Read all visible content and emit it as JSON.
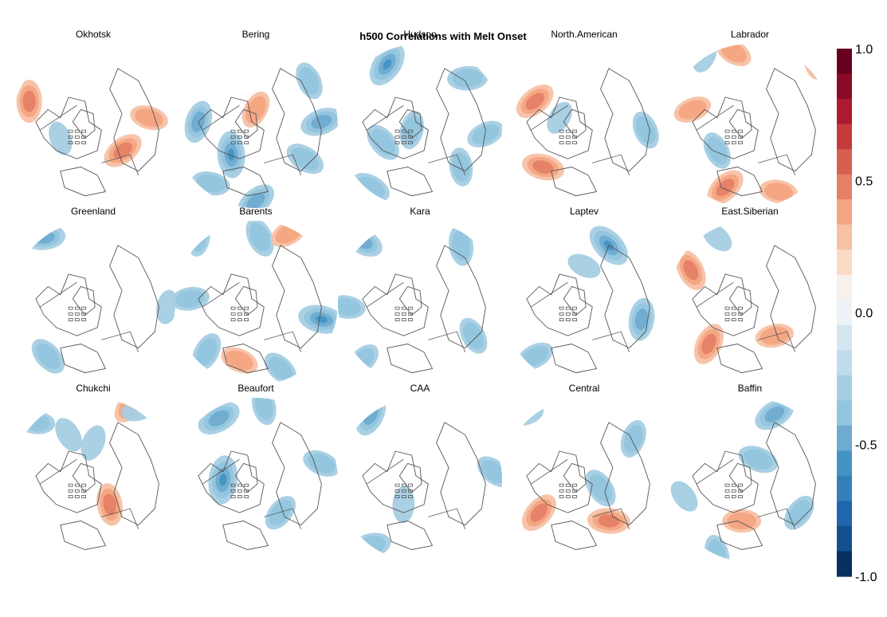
{
  "chart_data": {
    "type": "heatmap",
    "title": "h500 Correlations with Melt Onset",
    "panels": [
      {
        "name": "Okhotsk",
        "blobs": [
          {
            "x": -0.78,
            "y": -0.3,
            "v": 0.5
          },
          {
            "x": 0.36,
            "y": 0.3,
            "v": 0.5
          },
          {
            "x": 0.68,
            "y": -0.1,
            "v": 0.4
          },
          {
            "x": -0.4,
            "y": 0.15,
            "v": -0.3
          }
        ]
      },
      {
        "name": "Bering",
        "blobs": [
          {
            "x": -0.7,
            "y": -0.05,
            "v": -0.5
          },
          {
            "x": 0.8,
            "y": -0.05,
            "v": -0.5
          },
          {
            "x": 0.6,
            "y": 0.4,
            "v": -0.45
          },
          {
            "x": -0.3,
            "y": 0.35,
            "v": -0.6
          },
          {
            "x": 0.0,
            "y": 0.92,
            "v": -0.5
          },
          {
            "x": -0.55,
            "y": 0.7,
            "v": -0.4
          },
          {
            "x": 0.65,
            "y": -0.55,
            "v": -0.4
          },
          {
            "x": 0.0,
            "y": -0.2,
            "v": 0.4
          }
        ]
      },
      {
        "name": "Hudson",
        "blobs": [
          {
            "x": -0.4,
            "y": -0.75,
            "v": -0.6
          },
          {
            "x": 0.58,
            "y": -0.58,
            "v": -0.45
          },
          {
            "x": -0.45,
            "y": 0.2,
            "v": -0.45
          },
          {
            "x": -0.1,
            "y": 0.05,
            "v": -0.4
          },
          {
            "x": 0.8,
            "y": 0.1,
            "v": -0.4
          },
          {
            "x": -0.6,
            "y": 0.75,
            "v": -0.45
          },
          {
            "x": 0.5,
            "y": 0.5,
            "v": -0.4
          }
        ]
      },
      {
        "name": "North.American",
        "blobs": [
          {
            "x": -0.6,
            "y": -0.3,
            "v": 0.5
          },
          {
            "x": -0.5,
            "y": 0.5,
            "v": 0.5
          },
          {
            "x": 0.75,
            "y": 0.05,
            "v": -0.4
          },
          {
            "x": -0.3,
            "y": -0.1,
            "v": -0.3
          }
        ]
      },
      {
        "name": "Labrador",
        "blobs": [
          {
            "x": -0.7,
            "y": -0.2,
            "v": 0.4
          },
          {
            "x": -0.2,
            "y": -0.9,
            "v": 0.4
          },
          {
            "x": 0.8,
            "y": -0.8,
            "v": 0.4
          },
          {
            "x": -0.3,
            "y": 0.75,
            "v": 0.5
          },
          {
            "x": 0.35,
            "y": 0.8,
            "v": 0.4
          },
          {
            "x": -0.4,
            "y": 0.3,
            "v": -0.4
          },
          {
            "x": -0.55,
            "y": -0.85,
            "v": -0.3
          }
        ]
      },
      {
        "name": "Greenland",
        "blobs": [
          {
            "x": -0.6,
            "y": -0.8,
            "v": -0.5
          },
          {
            "x": -0.55,
            "y": 0.65,
            "v": -0.45
          },
          {
            "x": 0.9,
            "y": 0.05,
            "v": -0.3
          }
        ]
      },
      {
        "name": "Barents",
        "blobs": [
          {
            "x": 0.8,
            "y": 0.2,
            "v": -0.6
          },
          {
            "x": 0.05,
            "y": -0.8,
            "v": -0.45
          },
          {
            "x": -0.6,
            "y": 0.6,
            "v": -0.45
          },
          {
            "x": -0.8,
            "y": -0.05,
            "v": -0.4
          },
          {
            "x": 0.3,
            "y": 0.8,
            "v": -0.4
          },
          {
            "x": -0.7,
            "y": -0.8,
            "v": -0.4
          },
          {
            "x": 0.4,
            "y": -0.85,
            "v": 0.4
          },
          {
            "x": -0.2,
            "y": 0.7,
            "v": 0.4
          }
        ]
      },
      {
        "name": "Kara",
        "blobs": [
          {
            "x": -0.7,
            "y": -0.75,
            "v": -0.5
          },
          {
            "x": 0.5,
            "y": -0.7,
            "v": -0.45
          },
          {
            "x": -0.7,
            "y": 0.7,
            "v": -0.4
          },
          {
            "x": -0.9,
            "y": 0.05,
            "v": -0.4
          },
          {
            "x": 0.65,
            "y": 0.4,
            "v": -0.4
          }
        ]
      },
      {
        "name": "Laptev",
        "blobs": [
          {
            "x": 0.3,
            "y": -0.7,
            "v": -0.6
          },
          {
            "x": 0.7,
            "y": 0.2,
            "v": -0.5
          },
          {
            "x": -0.6,
            "y": 0.65,
            "v": -0.4
          },
          {
            "x": 0.0,
            "y": -0.45,
            "v": -0.3
          }
        ]
      },
      {
        "name": "East.Siberian",
        "blobs": [
          {
            "x": -0.72,
            "y": -0.4,
            "v": 0.5
          },
          {
            "x": -0.5,
            "y": 0.5,
            "v": 0.5
          },
          {
            "x": 0.3,
            "y": 0.4,
            "v": 0.4
          },
          {
            "x": -0.4,
            "y": -0.8,
            "v": -0.3
          }
        ]
      },
      {
        "name": "Chukchi",
        "blobs": [
          {
            "x": 0.2,
            "y": 0.3,
            "v": 0.5
          },
          {
            "x": 0.45,
            "y": -0.9,
            "v": 0.4
          },
          {
            "x": -0.7,
            "y": -0.7,
            "v": -0.4
          },
          {
            "x": -0.3,
            "y": -0.55,
            "v": -0.35
          },
          {
            "x": 0.0,
            "y": -0.45,
            "v": -0.35
          },
          {
            "x": 0.55,
            "y": -0.85,
            "v": -0.3
          }
        ]
      },
      {
        "name": "Beaufort",
        "blobs": [
          {
            "x": -0.4,
            "y": 0.0,
            "v": -0.65
          },
          {
            "x": -0.45,
            "y": -0.75,
            "v": -0.55
          },
          {
            "x": 0.8,
            "y": -0.2,
            "v": -0.4
          },
          {
            "x": 0.1,
            "y": -0.9,
            "v": -0.4
          },
          {
            "x": 0.3,
            "y": 0.4,
            "v": -0.4
          }
        ]
      },
      {
        "name": "CAA",
        "blobs": [
          {
            "x": -0.6,
            "y": -0.8,
            "v": -0.55
          },
          {
            "x": -0.6,
            "y": 0.8,
            "v": -0.45
          },
          {
            "x": 0.9,
            "y": -0.1,
            "v": -0.4
          },
          {
            "x": -0.2,
            "y": 0.3,
            "v": -0.35
          }
        ]
      },
      {
        "name": "Central",
        "blobs": [
          {
            "x": -0.55,
            "y": 0.4,
            "v": 0.5
          },
          {
            "x": 0.3,
            "y": 0.5,
            "v": 0.5
          },
          {
            "x": 0.2,
            "y": 0.1,
            "v": -0.45
          },
          {
            "x": 0.6,
            "y": -0.5,
            "v": -0.4
          },
          {
            "x": -0.7,
            "y": -0.8,
            "v": -0.3
          }
        ]
      },
      {
        "name": "Baffin",
        "blobs": [
          {
            "x": 0.3,
            "y": -0.8,
            "v": -0.5
          },
          {
            "x": 0.1,
            "y": -0.25,
            "v": -0.45
          },
          {
            "x": -0.4,
            "y": 0.9,
            "v": -0.4
          },
          {
            "x": 0.6,
            "y": 0.4,
            "v": -0.4
          },
          {
            "x": -0.1,
            "y": 0.5,
            "v": 0.4
          },
          {
            "x": -0.8,
            "y": 0.2,
            "v": -0.3
          }
        ]
      }
    ],
    "colorbar": {
      "ticks": [
        1.0,
        0.5,
        0.0,
        -0.5,
        -1.0
      ],
      "tick_labels": [
        "1.0",
        "0.5",
        "0.0",
        "-0.5",
        "-1.0"
      ],
      "colors": [
        "#67001f",
        "#8b0a26",
        "#ac1a2f",
        "#c53a3a",
        "#d6604d",
        "#e48066",
        "#f4a582",
        "#f7c1a5",
        "#fbdac6",
        "#f7f0eb",
        "#ecf2f6",
        "#d5e6f0",
        "#c0dbeb",
        "#a5cee3",
        "#92c5de",
        "#6fabd0",
        "#4393c3",
        "#3480b9",
        "#2166ac",
        "#12508d",
        "#053061"
      ]
    }
  }
}
